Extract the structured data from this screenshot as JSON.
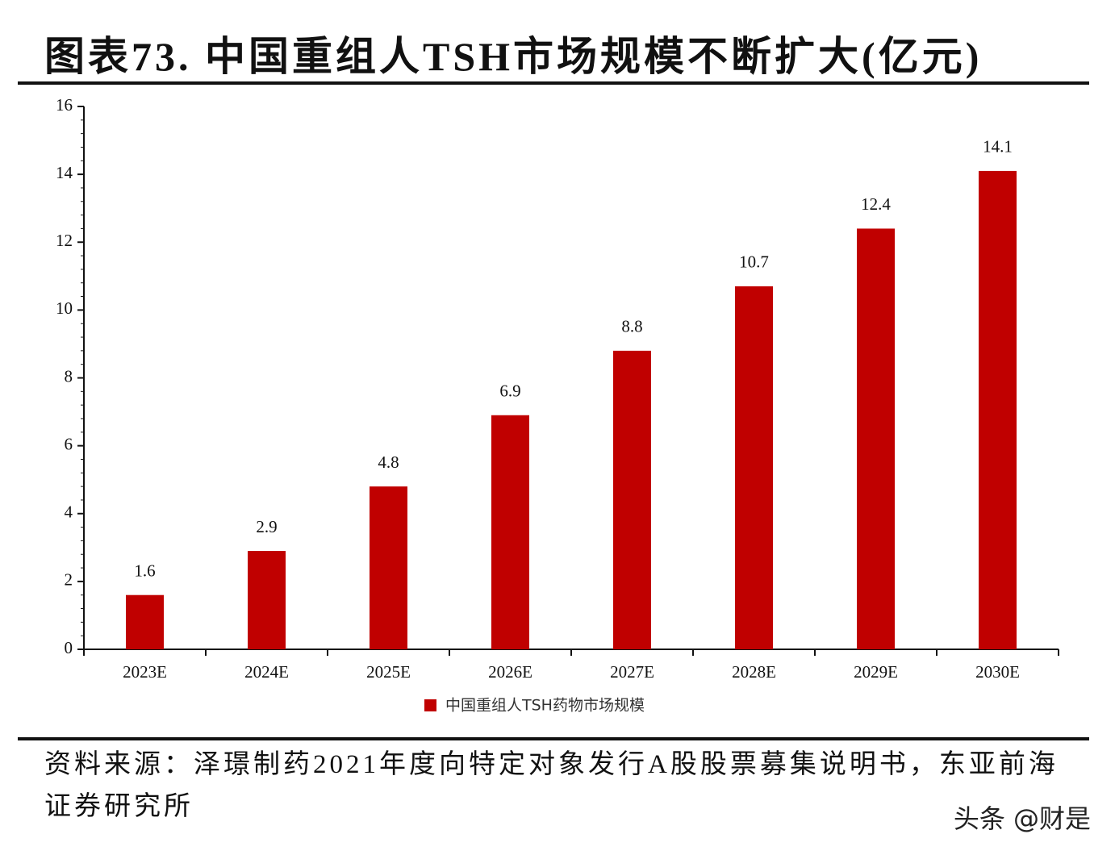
{
  "chart_data": {
    "type": "bar",
    "title": "图表73. 中国重组人TSH市场规模不断扩大(亿元)",
    "categories": [
      "2023E",
      "2024E",
      "2025E",
      "2026E",
      "2027E",
      "2028E",
      "2029E",
      "2030E"
    ],
    "series": [
      {
        "name": "中国重组人TSH药物市场规模",
        "color": "#c00000",
        "values": [
          1.6,
          2.9,
          4.8,
          6.9,
          8.8,
          10.7,
          12.4,
          14.1
        ]
      }
    ],
    "ylim": [
      0,
      16
    ],
    "yticks": [
      0,
      2,
      4,
      6,
      8,
      10,
      12,
      14,
      16
    ],
    "grid": false,
    "source": "资料来源：泽璟制药2021年度向特定对象发行A股股票募集说明书，东亚前海证券研究所",
    "watermark": "头条 @财是"
  }
}
